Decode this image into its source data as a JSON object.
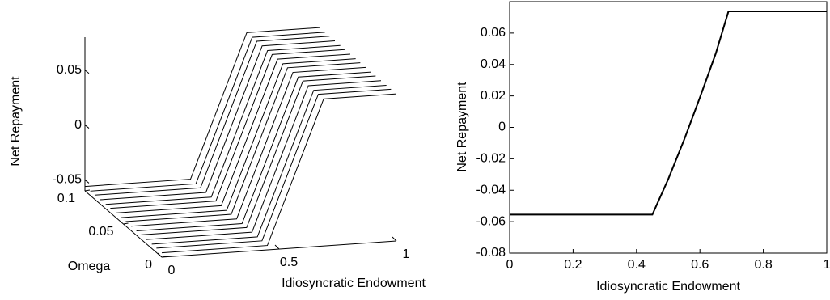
{
  "chart_data": [
    {
      "type": "line3d",
      "xlabel": "Idiosyncratic Endowment",
      "ylabel": "Omega",
      "zlabel": "Net Repayment",
      "x": [
        0,
        0.45,
        0.69,
        1
      ],
      "lines": [
        {
          "y": 0,
          "values": [
            -0.056,
            -0.056,
            0.074,
            0.074
          ]
        },
        {
          "y": 0.007,
          "values": [
            -0.056,
            -0.056,
            0.074,
            0.074
          ]
        },
        {
          "y": 0.013,
          "values": [
            -0.056,
            -0.056,
            0.074,
            0.074
          ]
        },
        {
          "y": 0.02,
          "values": [
            -0.056,
            -0.056,
            0.074,
            0.074
          ]
        },
        {
          "y": 0.027,
          "values": [
            -0.056,
            -0.056,
            0.074,
            0.074
          ]
        },
        {
          "y": 0.033,
          "values": [
            -0.056,
            -0.056,
            0.074,
            0.074
          ]
        },
        {
          "y": 0.04,
          "values": [
            -0.056,
            -0.056,
            0.074,
            0.074
          ]
        },
        {
          "y": 0.047,
          "values": [
            -0.056,
            -0.056,
            0.074,
            0.074
          ]
        },
        {
          "y": 0.053,
          "values": [
            -0.056,
            -0.056,
            0.074,
            0.074
          ]
        },
        {
          "y": 0.06,
          "values": [
            -0.056,
            -0.056,
            0.074,
            0.074
          ]
        },
        {
          "y": 0.067,
          "values": [
            -0.056,
            -0.056,
            0.074,
            0.074
          ]
        },
        {
          "y": 0.073,
          "values": [
            -0.056,
            -0.056,
            0.074,
            0.074
          ]
        },
        {
          "y": 0.08,
          "values": [
            -0.056,
            -0.056,
            0.074,
            0.074
          ]
        },
        {
          "y": 0.087,
          "values": [
            -0.056,
            -0.056,
            0.074,
            0.074
          ]
        },
        {
          "y": 0.093,
          "values": [
            -0.056,
            -0.056,
            0.074,
            0.074
          ]
        },
        {
          "y": 0.1,
          "values": [
            -0.056,
            -0.056,
            0.074,
            0.074
          ]
        }
      ],
      "color": "#000000",
      "xlim": [
        0,
        1
      ],
      "xticks": [
        0,
        0.5,
        1
      ],
      "ylim": [
        0,
        0.1
      ],
      "yticks": [
        0,
        0.05,
        0.1
      ],
      "zlim": [
        -0.06,
        0.08
      ],
      "zticks": [
        -0.05,
        0,
        0.05
      ]
    },
    {
      "type": "line",
      "xlabel": "Idiosyncratic Endowment",
      "ylabel": "Net Repayment",
      "x": [
        0,
        0.1,
        0.2,
        0.3,
        0.4,
        0.45,
        0.5,
        0.55,
        0.6,
        0.65,
        0.69,
        0.8,
        0.9,
        1
      ],
      "values": [
        -0.0555,
        -0.0555,
        -0.0555,
        -0.0555,
        -0.0555,
        -0.0555,
        -0.033,
        -0.008,
        0.019,
        0.047,
        0.0738,
        0.0738,
        0.0738,
        0.0738
      ],
      "color": "#000000",
      "xlim": [
        0,
        1
      ],
      "xticks": [
        0,
        0.2,
        0.4,
        0.6,
        0.8,
        1
      ],
      "ylim": [
        -0.08,
        0.08
      ],
      "yticks": [
        -0.08,
        -0.06,
        -0.04,
        -0.02,
        0,
        0.02,
        0.04,
        0.06
      ]
    }
  ]
}
